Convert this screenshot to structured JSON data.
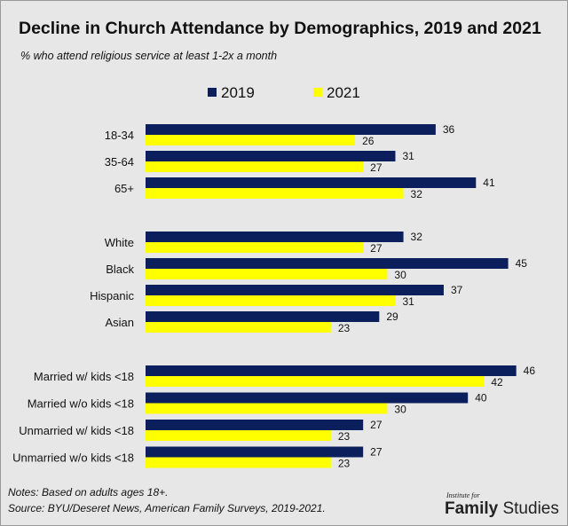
{
  "chart_data": {
    "type": "bar",
    "orientation": "horizontal",
    "title": "Decline in Church Attendance by Demographics, 2019 and 2021",
    "subtitle": "% who attend religious service at least 1-2x a month",
    "legend_position": "top",
    "grid": false,
    "xlim": [
      0,
      50
    ],
    "groups": [
      {
        "categories": [
          "18-34",
          "35-64",
          "65+"
        ]
      },
      {
        "categories": [
          "White",
          "Black",
          "Hispanic",
          "Asian"
        ]
      },
      {
        "categories": [
          "Married w/ kids <18",
          "Married w/o kids <18",
          "Unmarried w/ kids <18",
          "Unmarried w/o kids <18"
        ]
      }
    ],
    "categories": [
      "18-34",
      "35-64",
      "65+",
      "White",
      "Black",
      "Hispanic",
      "Asian",
      "Married w/ kids <18",
      "Married w/o kids <18",
      "Unmarried w/ kids <18",
      "Unmarried w/o kids <18"
    ],
    "series": [
      {
        "name": "2019",
        "color": "#0b1f5c",
        "values": [
          36,
          31,
          41,
          32,
          45,
          37,
          29,
          46,
          40,
          27,
          27
        ]
      },
      {
        "name": "2021",
        "color": "#ffff00",
        "values": [
          26,
          27,
          32,
          27,
          30,
          31,
          23,
          42,
          30,
          23,
          23
        ]
      }
    ]
  },
  "notes": [
    "Notes: Based on adults ages 18+.",
    "Source: BYU/Deseret News, American Family Surveys, 2019-2021."
  ],
  "logo": {
    "small": "Institute for",
    "bold": "Family",
    "light": "Studies"
  }
}
